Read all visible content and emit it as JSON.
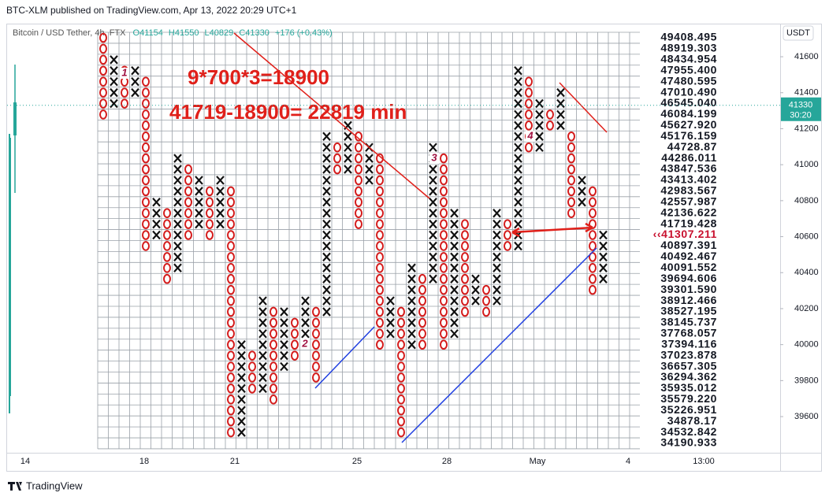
{
  "header": {
    "published": "BTC-XLM published on TradingView.com, Apr 13, 2022 20:29 UTC+1",
    "symbol": "Bitcoin / USD Tether, 4h, FTX",
    "open": "O41154",
    "high": "H41550",
    "low": "L40829",
    "close": "C41330",
    "change": "+176 (+0.43%)"
  },
  "price_axis": {
    "currency": "USDT",
    "ylim": [
      39399,
      41784
    ],
    "yticks": [
      41600,
      41400,
      41200,
      41000,
      40800,
      40600,
      40400,
      40200,
      40000,
      39800,
      39600
    ],
    "last_price": 41330,
    "countdown": "30:20"
  },
  "box_scale": {
    "log": true,
    "levels": [
      49408.495,
      48919.303,
      48434.954,
      {
        "value": 47955.4,
        "label": "47955.400"
      },
      47480.595,
      {
        "value": 47010.49,
        "label": "47010.490"
      },
      {
        "value": 46545.04,
        "label": "46545.040"
      },
      46084.199,
      {
        "value": 45627.92,
        "label": "45627.920"
      },
      45176.159,
      44728.87,
      44286.011,
      43847.536,
      43413.402,
      42983.567,
      42557.987,
      42136.622,
      41719.428,
      {
        "value": 41307.211,
        "label": "‹‹41307.211"
      },
      40897.391,
      40492.467,
      40091.552,
      39694.606,
      {
        "value": 39301.59,
        "label": "39301.590"
      },
      38912.466,
      38527.195,
      38145.737,
      37768.057,
      37394.116,
      37023.878,
      36657.305,
      36294.362,
      35935.012,
      {
        "value": 35579.22,
        "label": "35579.220"
      },
      35226.951,
      34878.17,
      34532.842,
      34190.933
    ],
    "x_color": "#111111",
    "o_color": "#d41c1c"
  },
  "columns": [
    {
      "type": "O",
      "high": 49408.495,
      "low": 46084.199
    },
    {
      "type": "X",
      "high": 48434.954,
      "low": 46545.04
    },
    {
      "type": "O",
      "high": 47955.4,
      "low": 46545.04
    },
    {
      "type": "X",
      "high": 47955.4,
      "low": 47010.49
    },
    {
      "type": "O",
      "high": 47480.595,
      "low": 40897.391
    },
    {
      "type": "X",
      "high": 42557.987,
      "low": 41307.211
    },
    {
      "type": "O",
      "high": 42136.622,
      "low": 39694.606
    },
    {
      "type": "X",
      "high": 44286.011,
      "low": 40091.552
    },
    {
      "type": "O",
      "high": 43847.536,
      "low": 41307.211
    },
    {
      "type": "X",
      "high": 43413.402,
      "low": 41719.428
    },
    {
      "type": "O",
      "high": 42983.567,
      "low": 41307.211
    },
    {
      "type": "X",
      "high": 43413.402,
      "low": 41719.428
    },
    {
      "type": "O",
      "high": 42983.567,
      "low": 34532.842
    },
    {
      "type": "X",
      "high": 37394.116,
      "low": 34532.842
    },
    {
      "type": "O",
      "high": 37023.878,
      "low": 35935.012
    },
    {
      "type": "X",
      "high": 38912.466,
      "low": 35935.012
    },
    {
      "type": "O",
      "high": 38527.195,
      "low": 35579.22
    },
    {
      "type": "X",
      "high": 38527.195,
      "low": 36657.305
    },
    {
      "type": "O",
      "high": 38145.737,
      "low": 37023.878
    },
    {
      "type": "X",
      "high": 38912.466,
      "low": 37394.116
    },
    {
      "type": "O",
      "high": 38527.195,
      "low": 36294.362
    },
    {
      "type": "X",
      "high": 45176.159,
      "low": 38527.195
    },
    {
      "type": "O",
      "high": 44728.87,
      "low": 43847.536
    },
    {
      "type": "X",
      "high": 45627.92,
      "low": 43847.536
    },
    {
      "type": "O",
      "high": 45176.159,
      "low": 41719.428
    },
    {
      "type": "X",
      "high": 44728.87,
      "low": 43413.402
    },
    {
      "type": "O",
      "high": 44286.011,
      "low": 37394.116
    },
    {
      "type": "X",
      "high": 38912.466,
      "low": 37768.057
    },
    {
      "type": "O",
      "high": 38527.195,
      "low": 34532.842
    },
    {
      "type": "X",
      "high": 40091.552,
      "low": 37394.116
    },
    {
      "type": "O",
      "high": 39694.606,
      "low": 37394.116
    },
    {
      "type": "X",
      "high": 44728.87,
      "low": 39694.606
    },
    {
      "type": "O",
      "high": 44286.011,
      "low": 37394.116
    },
    {
      "type": "X",
      "high": 42136.622,
      "low": 37768.057
    },
    {
      "type": "O",
      "high": 41719.428,
      "low": 38527.195
    },
    {
      "type": "X",
      "high": 39694.606,
      "low": 38912.466
    },
    {
      "type": "O",
      "high": 39301.59,
      "low": 38527.195
    },
    {
      "type": "X",
      "high": 42136.622,
      "low": 38912.466
    },
    {
      "type": "O",
      "high": 41719.428,
      "low": 40897.391
    },
    {
      "type": "X",
      "high": 47955.4,
      "low": 40897.391
    },
    {
      "type": "O",
      "high": 47480.595,
      "low": 44728.87
    },
    {
      "type": "X",
      "high": 46545.04,
      "low": 44728.87
    },
    {
      "type": "O",
      "high": 46084.199,
      "low": 45627.92
    },
    {
      "type": "X",
      "high": 47010.49,
      "low": 45627.92
    },
    {
      "type": "O",
      "high": 45176.159,
      "low": 42136.622
    },
    {
      "type": "X",
      "high": 43413.402,
      "low": 42557.987
    },
    {
      "type": "O",
      "high": 42983.567,
      "low": 39301.59
    },
    {
      "type": "X",
      "high": 41307.211,
      "low": 39694.606
    }
  ],
  "x_axis": {
    "labels": [
      "14",
      "18",
      "21",
      "25",
      "28",
      "May",
      "4",
      "13:00"
    ]
  },
  "annotations": [
    "9*700*3=18900",
    "41719-18900= 22819 min"
  ],
  "reversal_numbers": [
    "1",
    "2",
    "3",
    "4"
  ],
  "footer": {
    "brand": "TradingView"
  }
}
